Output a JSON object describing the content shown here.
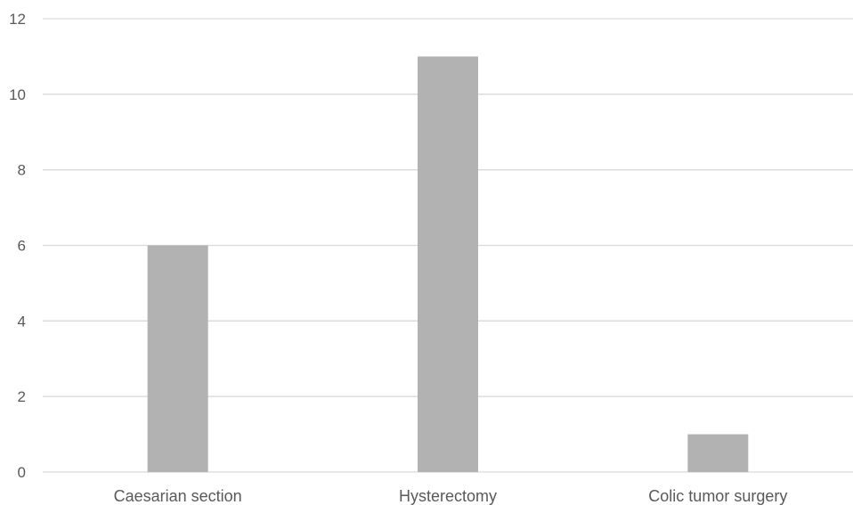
{
  "chart_data": {
    "type": "bar",
    "categories": [
      "Caesarian section",
      "Hysterectomy",
      "Colic tumor surgery"
    ],
    "series": [
      {
        "values": [
          6,
          11,
          1
        ],
        "color": "#b2b2b2"
      }
    ],
    "ylim": [
      0,
      12
    ],
    "yticks": [
      0,
      2,
      4,
      6,
      8,
      10,
      12
    ],
    "grid": true,
    "legend": "none",
    "title": "",
    "xlabel": "",
    "ylabel": ""
  }
}
